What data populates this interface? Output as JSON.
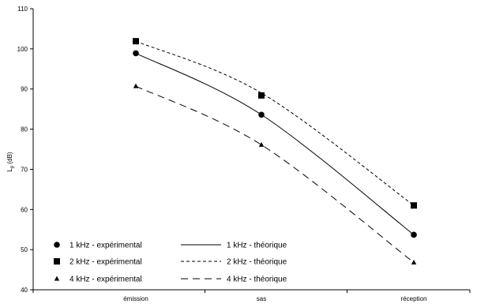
{
  "chart_data": {
    "type": "line",
    "ylabel": "L",
    "ylabel_sub": "p",
    "ylabel_unit": " (dB)",
    "xlabel": "",
    "categories": [
      "émission",
      "sas",
      "réception"
    ],
    "ylim": [
      40,
      110
    ],
    "yticks": [
      "40",
      "50",
      "60",
      "70",
      "80",
      "90",
      "100",
      "110"
    ],
    "grid": false,
    "legend_position": "bottom-left",
    "series": [
      {
        "name": "1 kHz - expérimental",
        "kind": "markers",
        "marker": "circle",
        "values": [
          98.9,
          83.6,
          53.7
        ]
      },
      {
        "name": "2 kHz - expérimental",
        "kind": "markers",
        "marker": "square",
        "values": [
          101.9,
          88.4,
          61.0
        ]
      },
      {
        "name": "4 kHz - expérimental",
        "kind": "markers",
        "marker": "triangle",
        "values": [
          90.7,
          76.1,
          46.8
        ]
      },
      {
        "name": "1 kHz - théorique",
        "kind": "line",
        "dash": "solid",
        "values": [
          98.9,
          83.6,
          53.7
        ]
      },
      {
        "name": "2 kHz - théorique",
        "kind": "line",
        "dash": "short",
        "values": [
          101.9,
          89.0,
          61.0
        ]
      },
      {
        "name": "4 kHz - théorique",
        "kind": "line",
        "dash": "long",
        "values": [
          90.7,
          76.1,
          46.8
        ]
      }
    ],
    "colors": {
      "series": "#000000",
      "axes": "#000000",
      "background": "#ffffff"
    }
  }
}
